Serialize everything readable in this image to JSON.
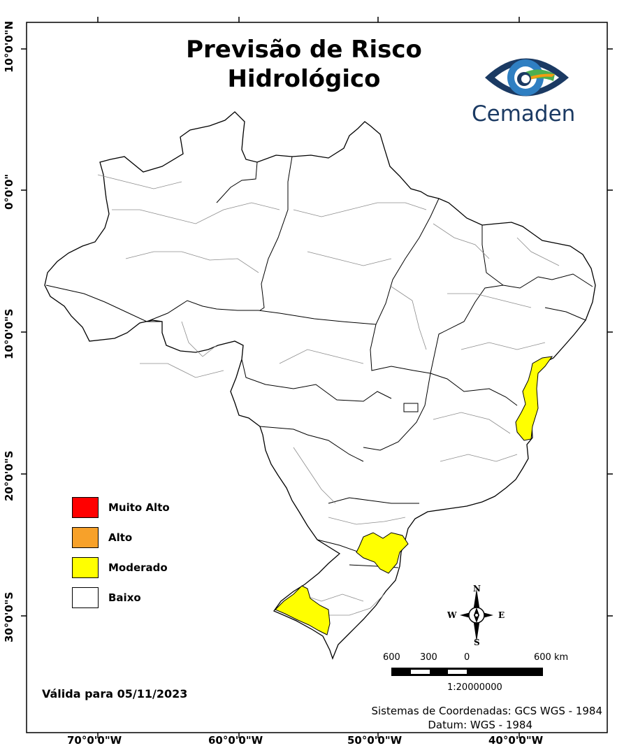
{
  "title": {
    "line1": "Previsão de Risco",
    "line2": "Hidrológico"
  },
  "logo": {
    "text": "Cemaden",
    "icon": "cemaden-eye-logo",
    "colors": {
      "navy": "#1b3a63",
      "blue": "#2f7fc2",
      "green": "#4caf50",
      "orange": "#f39c12"
    }
  },
  "legend": {
    "items": [
      {
        "label": "Muito Alto",
        "color": "#ff0000"
      },
      {
        "label": "Alto",
        "color": "#f7a12a"
      },
      {
        "label": "Moderado",
        "color": "#ffff00"
      },
      {
        "label": "Baixo",
        "color": "#ffffff"
      }
    ]
  },
  "valid_date": "Válida para 05/11/2023",
  "scale_bar": {
    "labels": [
      "600",
      "300",
      "0",
      "600 km"
    ],
    "ratio": "1:20000000"
  },
  "compass": {
    "n": "N",
    "s": "S",
    "e": "E",
    "w": "W"
  },
  "coordinates": {
    "system": "Sistemas de Coordenadas: GCS WGS - 1984",
    "datum": "Datum: WGS - 1984"
  },
  "grid": {
    "longitudes": [
      "70°0'0\"W",
      "60°0'0\"W",
      "50°0'0\"W",
      "40°0'0\"W"
    ],
    "latitudes": [
      "10°0'0\"N",
      "0°0'0\"",
      "10°0'0\"S",
      "20°0'0\"S",
      "30°0'0\"S"
    ]
  },
  "risk_colors": {
    "moderado": "#ffff00",
    "outline": "#000000",
    "internal": "#9a9a9a"
  }
}
